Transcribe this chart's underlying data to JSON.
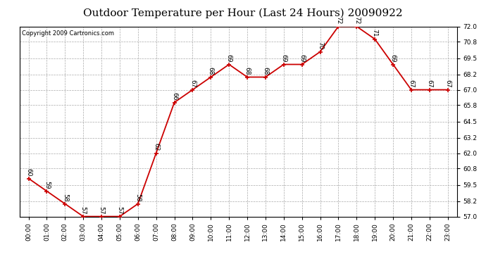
{
  "title": "Outdoor Temperature per Hour (Last 24 Hours) 20090922",
  "copyright": "Copyright 2009 Cartronics.com",
  "hours": [
    "00:00",
    "01:00",
    "02:00",
    "03:00",
    "04:00",
    "05:00",
    "06:00",
    "07:00",
    "08:00",
    "09:00",
    "10:00",
    "11:00",
    "12:00",
    "13:00",
    "14:00",
    "15:00",
    "16:00",
    "17:00",
    "18:00",
    "19:00",
    "20:00",
    "21:00",
    "22:00",
    "23:00"
  ],
  "temps": [
    60,
    59,
    58,
    57,
    57,
    57,
    58,
    62,
    66,
    67,
    68,
    69,
    68,
    68,
    69,
    69,
    70,
    72,
    72,
    71,
    69,
    67,
    67,
    67
  ],
  "line_color": "#cc0000",
  "marker_color": "#cc0000",
  "bg_color": "#ffffff",
  "grid_color": "#aaaaaa",
  "ylim_min": 57.0,
  "ylim_max": 72.0,
  "yticks": [
    57.0,
    58.2,
    59.5,
    60.8,
    62.0,
    63.2,
    64.5,
    65.8,
    67.0,
    68.2,
    69.5,
    70.8,
    72.0
  ],
  "title_fontsize": 11,
  "copyright_fontsize": 6,
  "label_fontsize": 6.5,
  "tick_fontsize": 6.5
}
